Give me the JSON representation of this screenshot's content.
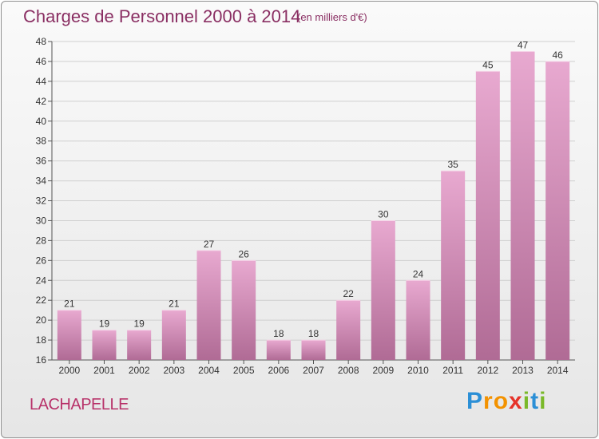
{
  "title": "Charges de Personnel 2000 à 2014",
  "unit_note": "(en milliers d'€)",
  "place": "LACHAPELLE",
  "logo": {
    "letters": [
      "P",
      "r",
      "o",
      "x",
      "i",
      "t",
      "i"
    ],
    "colors": [
      "#2b8fd6",
      "#f39200",
      "#f39200",
      "#e6332a",
      "#7ab929",
      "#2b8fd6",
      "#7ab929"
    ]
  },
  "colors": {
    "title": "#8a2f63",
    "place": "#b8336a",
    "bar_top": "#e8a9d0",
    "bar_bottom": "#b06b95",
    "grid": "#cfcfcf"
  },
  "chart_data": {
    "type": "bar",
    "categories": [
      "2000",
      "2001",
      "2002",
      "2003",
      "2004",
      "2005",
      "2006",
      "2007",
      "2008",
      "2009",
      "2010",
      "2011",
      "2012",
      "2013",
      "2014"
    ],
    "values": [
      21,
      19,
      19,
      21,
      27,
      26,
      18,
      18,
      22,
      30,
      24,
      35,
      45,
      47,
      46
    ],
    "ylim": [
      16,
      48
    ],
    "yticks": [
      16,
      18,
      20,
      22,
      24,
      26,
      28,
      30,
      32,
      34,
      36,
      38,
      40,
      42,
      44,
      46,
      48
    ],
    "grid": true,
    "data_labels": true
  }
}
